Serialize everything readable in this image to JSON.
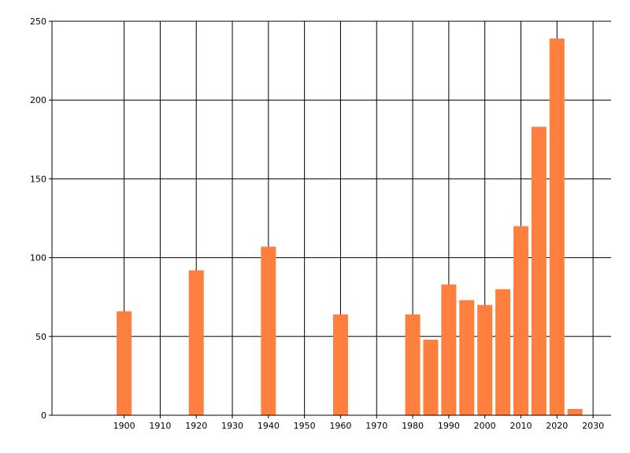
{
  "chart_data": {
    "type": "bar",
    "x": [
      1900,
      1920,
      1940,
      1960,
      1980,
      1985,
      1990,
      1995,
      2000,
      2005,
      2010,
      2015,
      2020,
      2025
    ],
    "values": [
      66,
      92,
      107,
      64,
      64,
      48,
      83,
      73,
      70,
      80,
      120,
      183,
      239,
      4
    ],
    "xlim": [
      1880,
      2035
    ],
    "ylim": [
      0,
      250
    ],
    "x_ticks": [
      "1900",
      "1910",
      "1920",
      "1930",
      "1940",
      "1950",
      "1960",
      "1970",
      "1980",
      "1990",
      "2000",
      "2010",
      "2020",
      "2030"
    ],
    "y_ticks": [
      "0",
      "50",
      "100",
      "150",
      "200",
      "250"
    ],
    "grid": true,
    "bar_color": "#ff7f3f",
    "grid_color": "#000000"
  }
}
